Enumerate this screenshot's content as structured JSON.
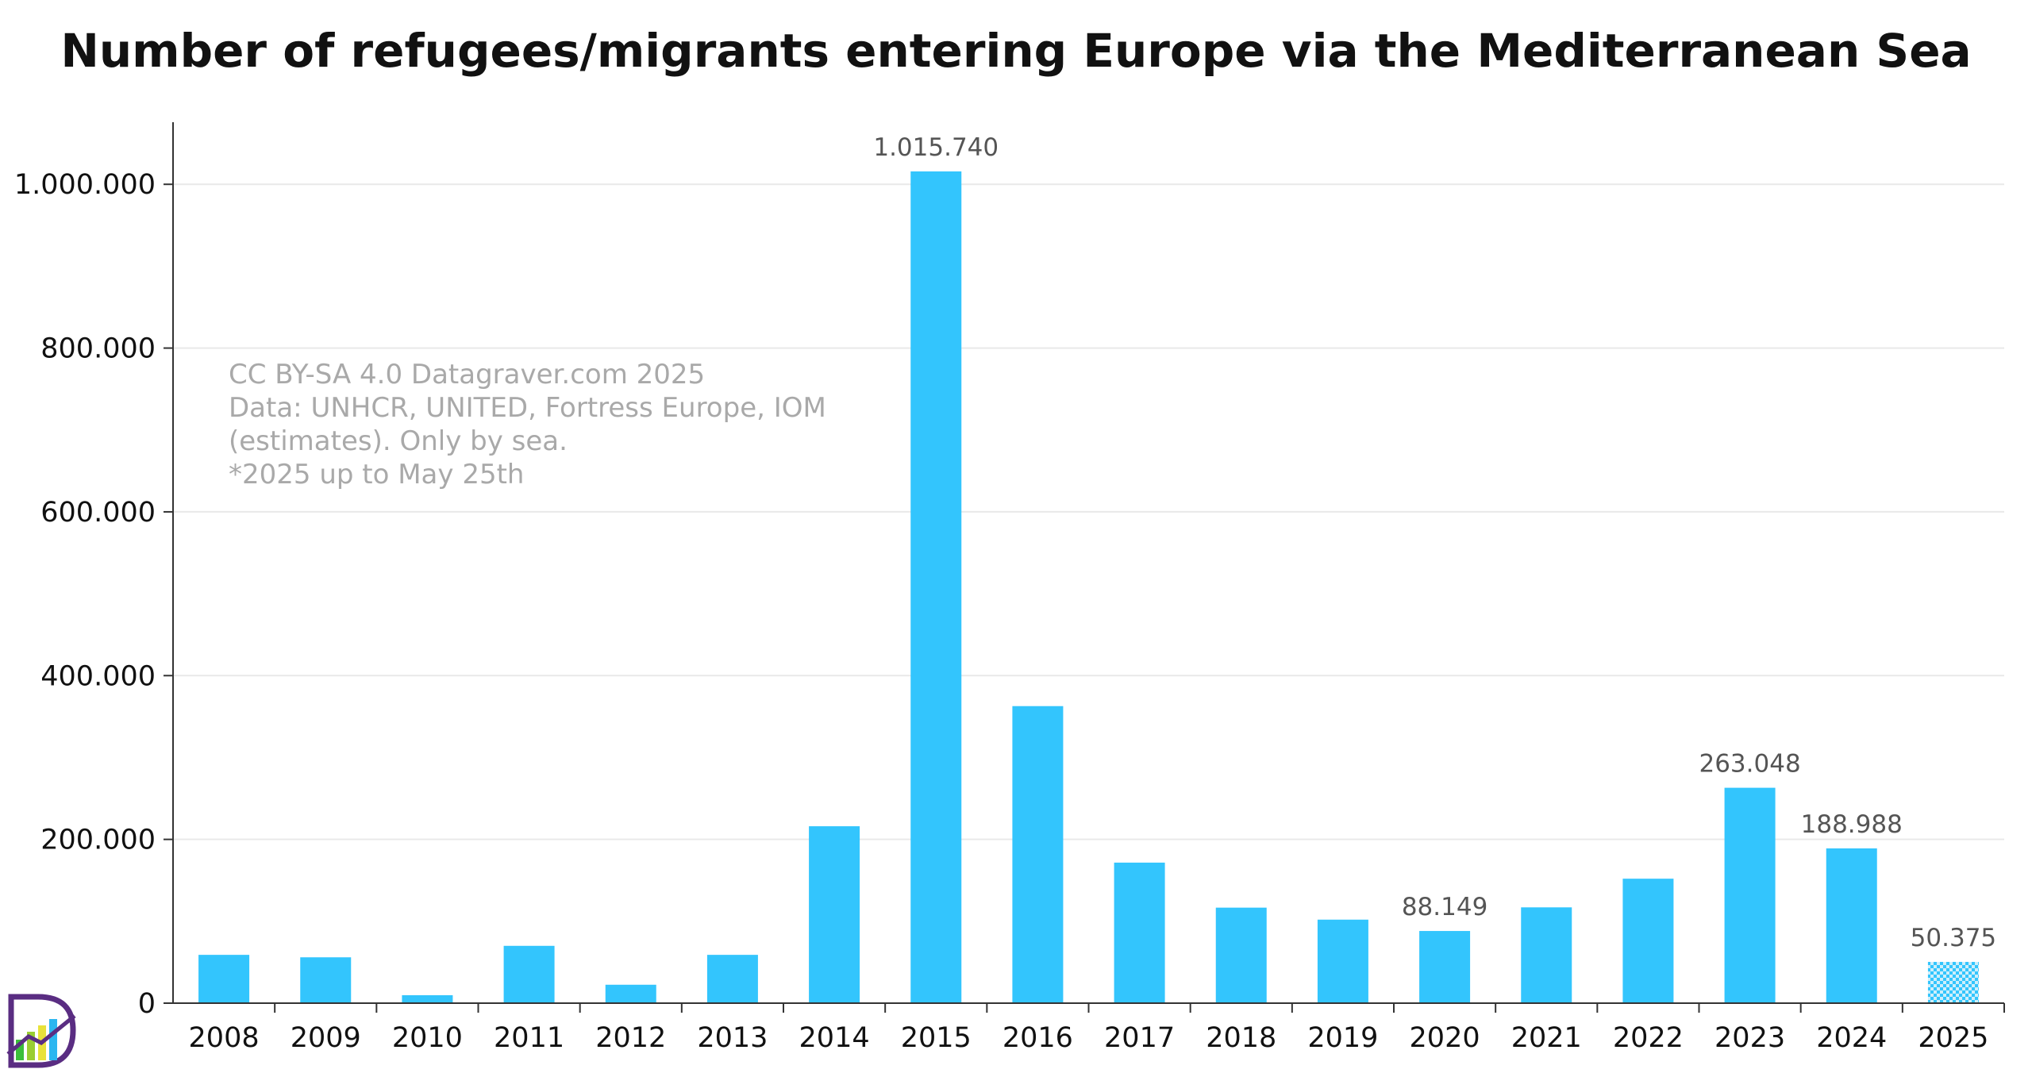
{
  "chart_data": {
    "type": "bar",
    "title": "Number of refugees/migrants entering Europe via the Mediterranean Sea",
    "xlabel": "",
    "ylabel": "",
    "categories": [
      "2008",
      "2009",
      "2010",
      "2011",
      "2012",
      "2013",
      "2014",
      "2015",
      "2016",
      "2017",
      "2018",
      "2019",
      "2020",
      "2021",
      "2022",
      "2023",
      "2024",
      "2025"
    ],
    "values": [
      59000,
      56000,
      9700,
      70000,
      22500,
      59000,
      216054,
      1015740,
      362753,
      171635,
      116647,
      102000,
      88149,
      117000,
      152000,
      263048,
      188988,
      50375
    ],
    "data_labels": {
      "2015": "1.015.740",
      "2020": "88.149",
      "2023": "263.048",
      "2024": "188.988",
      "2025": "50.375"
    },
    "partial_categories": [
      "2025"
    ],
    "ylim": [
      0,
      1070000
    ],
    "yticks": [
      0,
      200000,
      400000,
      600000,
      800000,
      1000000
    ],
    "ytick_labels": [
      "0",
      "200.000",
      "400.000",
      "600.000",
      "800.000",
      "1.000.000"
    ],
    "grid": true,
    "legend": "none",
    "annotation": [
      "CC BY-SA 4.0 Datagraver.com 2025",
      "Data: UNHCR, UNITED, Fortress Europe, IOM",
      "(estimates). Only by sea.",
      "*2025 up to May 25th"
    ],
    "colors": {
      "bar": "#33c5fd",
      "grid": "#e9e9e9",
      "axis": "#333333",
      "label": "#555555",
      "note": "#a9a9a9"
    }
  },
  "logo": {
    "icon": "datagraver-logo-icon"
  }
}
